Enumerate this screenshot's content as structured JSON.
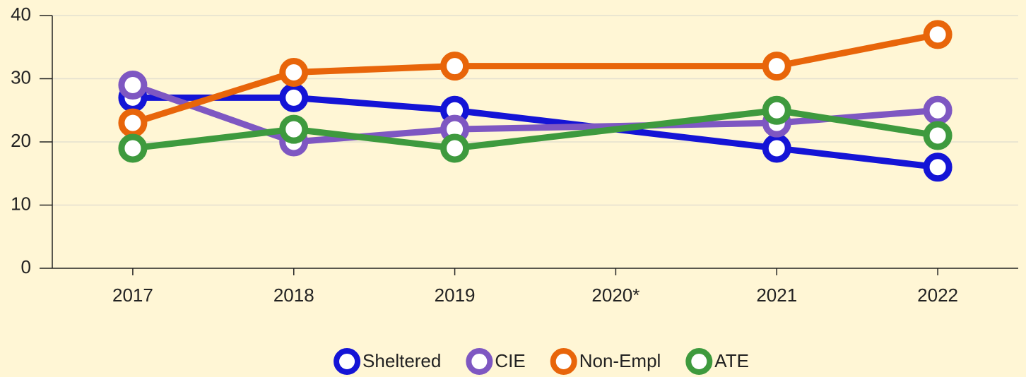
{
  "chart_data": {
    "type": "line",
    "categories": [
      "2017",
      "2018",
      "2019",
      "2020*",
      "2021",
      "2022"
    ],
    "series": [
      {
        "name": "Sheltered",
        "color": "#1414d6",
        "values": [
          27,
          27,
          25,
          null,
          19,
          16
        ]
      },
      {
        "name": "CIE",
        "color": "#7e57c2",
        "values": [
          29,
          20,
          22,
          null,
          23,
          25
        ]
      },
      {
        "name": "Non-Empl",
        "color": "#e8650a",
        "values": [
          23,
          31,
          32,
          null,
          32,
          37
        ]
      },
      {
        "name": "ATE",
        "color": "#3e9a3e",
        "values": [
          19,
          22,
          19,
          null,
          25,
          21
        ]
      }
    ],
    "ylim": [
      0,
      40
    ],
    "yticks": [
      0,
      10,
      20,
      30,
      40
    ],
    "grid": true,
    "span_gaps": true,
    "legend": "bottom"
  }
}
